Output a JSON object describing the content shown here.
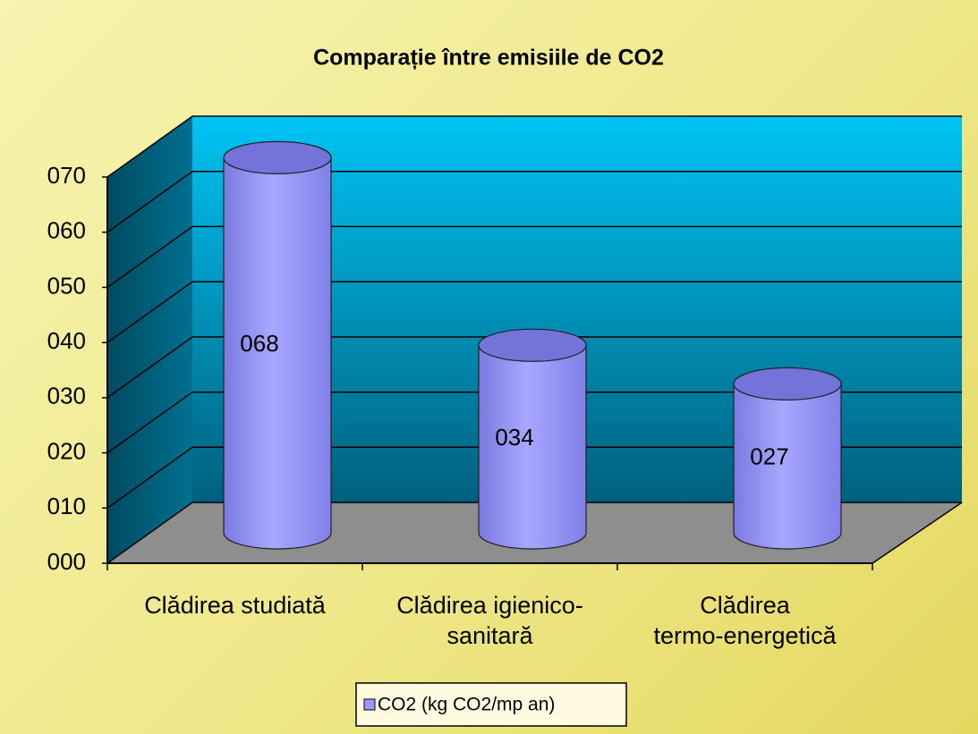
{
  "chart_data": {
    "type": "bar3d",
    "title": "Comparație între emisiile de CO2",
    "categories": [
      "Clădirea studiată",
      "Clădirea igienico-\nsanitară",
      "Clădirea\ntermo-energetică"
    ],
    "series": [
      {
        "name": "CO2 (kg CO2/mp an)",
        "color": "#9999ff",
        "values": [
          68,
          34,
          27
        ],
        "value_labels": [
          "068",
          "034",
          "027"
        ]
      }
    ],
    "ylim": [
      0,
      70
    ],
    "yticks": [
      {
        "value": 0,
        "label": "000"
      },
      {
        "value": 10,
        "label": "010"
      },
      {
        "value": 20,
        "label": "020"
      },
      {
        "value": 30,
        "label": "030"
      },
      {
        "value": 40,
        "label": "040"
      },
      {
        "value": 50,
        "label": "050"
      },
      {
        "value": 60,
        "label": "060"
      },
      {
        "value": 70,
        "label": "070"
      }
    ],
    "grid": true,
    "legend": "bottom"
  }
}
